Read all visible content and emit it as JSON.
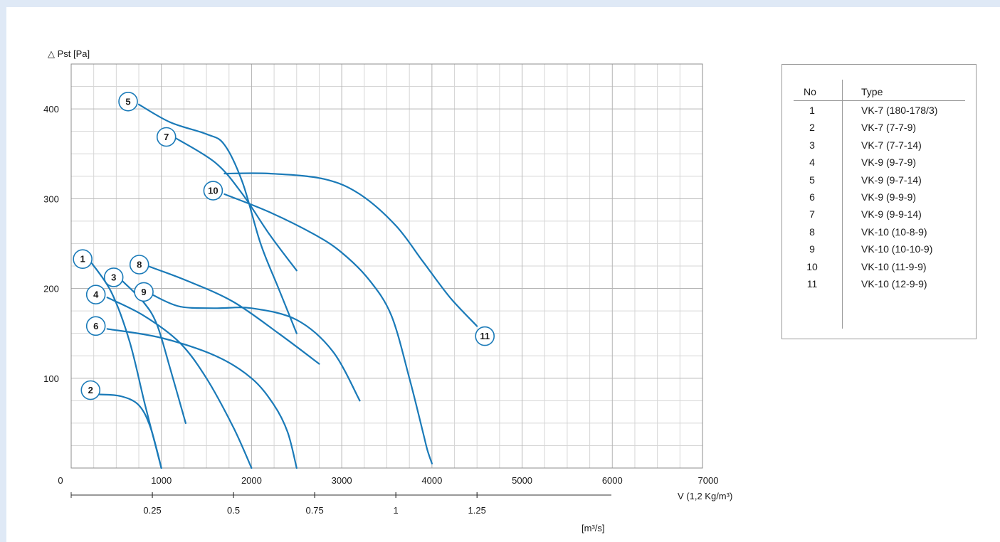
{
  "colors": {
    "curve": "#1a7ab8",
    "grid": "#b5b5b5",
    "axis": "#333333",
    "background": "#dfe9f6"
  },
  "chart_data": {
    "type": "line",
    "title": "",
    "ylabel": "△ Pst [Pa]",
    "xlabel": "V (1,2 Kg/m³)",
    "secondary_xlabel": "[m³/s]",
    "xlim": [
      0,
      7000
    ],
    "ylim": [
      0,
      450
    ],
    "x_ticks": [
      "0",
      "1000",
      "2000",
      "3000",
      "4000",
      "5000",
      "6000",
      "7000"
    ],
    "y_ticks": [
      "100",
      "200",
      "300",
      "400"
    ],
    "secondary_x_ticks": [
      "0.25",
      "0.5",
      "0.75",
      "1",
      "1.25"
    ],
    "grid": true,
    "series": [
      {
        "name": "1",
        "label": "1",
        "x": [
          230,
          450,
          650,
          820,
          1000
        ],
        "y": [
          228,
          195,
          140,
          70,
          0
        ]
      },
      {
        "name": "2",
        "label": "2",
        "x": [
          310,
          550,
          750,
          880,
          1000
        ],
        "y": [
          82,
          80,
          70,
          45,
          0
        ]
      },
      {
        "name": "3",
        "label": "3",
        "x": [
          550,
          800,
          950,
          1100,
          1270
        ],
        "y": [
          210,
          185,
          160,
          110,
          50
        ]
      },
      {
        "name": "4",
        "label": "4",
        "x": [
          400,
          800,
          1200,
          1500,
          1800,
          2000
        ],
        "y": [
          190,
          170,
          140,
          100,
          45,
          0
        ]
      },
      {
        "name": "5",
        "label": "5",
        "x": [
          750,
          1100,
          1500,
          1700,
          1900,
          2100,
          2300,
          2500
        ],
        "y": [
          405,
          385,
          372,
          360,
          318,
          250,
          200,
          150
        ]
      },
      {
        "name": "6",
        "label": "6",
        "x": [
          400,
          1000,
          1600,
          2000,
          2250,
          2400,
          2500
        ],
        "y": [
          155,
          145,
          125,
          100,
          70,
          40,
          0
        ]
      },
      {
        "name": "7",
        "label": "7",
        "x": [
          1150,
          1600,
          1900,
          2200,
          2500
        ],
        "y": [
          368,
          340,
          305,
          260,
          220
        ]
      },
      {
        "name": "8",
        "label": "8",
        "x": [
          850,
          1300,
          1800,
          2300,
          2750
        ],
        "y": [
          225,
          208,
          185,
          150,
          116
        ]
      },
      {
        "name": "9",
        "label": "9",
        "x": [
          900,
          1200,
          1600,
          2000,
          2500,
          2900,
          3200
        ],
        "y": [
          193,
          180,
          178,
          178,
          165,
          130,
          75
        ]
      },
      {
        "name": "10",
        "label": "10",
        "x": [
          1700,
          2200,
          2700,
          3000,
          3300,
          3550,
          3750,
          3900,
          3950,
          4000
        ],
        "y": [
          305,
          285,
          260,
          240,
          210,
          170,
          100,
          40,
          20,
          5
        ]
      },
      {
        "name": "11",
        "label": "11",
        "x": [
          1700,
          2200,
          2800,
          3200,
          3600,
          3900,
          4200,
          4500
        ],
        "y": [
          328,
          328,
          322,
          305,
          270,
          230,
          190,
          158
        ]
      }
    ]
  },
  "legend_table": {
    "header_no": "No",
    "header_type": "Type",
    "rows": [
      {
        "no": "1",
        "type": "VK-7 (180-178/3)"
      },
      {
        "no": "2",
        "type": "VK-7 (7-7-9)"
      },
      {
        "no": "3",
        "type": "VK-7 (7-7-14)"
      },
      {
        "no": "4",
        "type": "VK-9 (9-7-9)"
      },
      {
        "no": "5",
        "type": "VK-9 (9-7-14)"
      },
      {
        "no": "6",
        "type": "VK-9 (9-9-9)"
      },
      {
        "no": "7",
        "type": "VK-9 (9-9-14)"
      },
      {
        "no": "8",
        "type": "VK-10 (10-8-9)"
      },
      {
        "no": "9",
        "type": "VK-10 (10-10-9)"
      },
      {
        "no": "10",
        "type": "VK-10 (11-9-9)"
      },
      {
        "no": "11",
        "type": "VK-10 (12-9-9)"
      }
    ]
  }
}
